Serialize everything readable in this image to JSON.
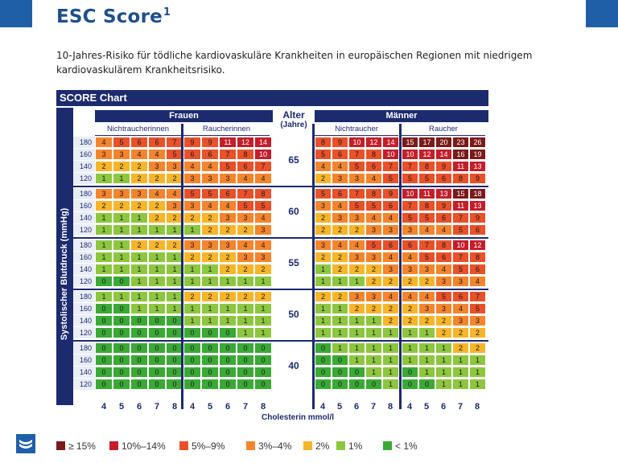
{
  "page": {
    "title": "ESC Score",
    "title_footnote": "1",
    "subtitle": "10-Jahres-Risiko für tödliche kardiovaskuläre Krankheiten in europäischen Regionen mit niedrigem kardiovaskulärem Krankheitsrisiko.",
    "brand_color": "#1f5fa8"
  },
  "chart": {
    "header": "SCORE Chart",
    "ylabel": "Systolischer Blutdruck (mmHg)",
    "xlabel": "Cholesterin mmol/l",
    "women_label": "Frauen",
    "men_label": "Männer",
    "age_label_line1": "Alter",
    "age_label_line2": "(Jahre)",
    "women_groups": [
      "Nichtraucherinnen",
      "Raucherinnen"
    ],
    "men_groups": [
      "Nichtraucher",
      "Raucher"
    ],
    "cholesterol_ticks": [
      "4",
      "5",
      "6",
      "7",
      "8",
      "4",
      "5",
      "6",
      "7",
      "8",
      "4",
      "5",
      "6",
      "7",
      "8",
      "4",
      "5",
      "6",
      "7",
      "8"
    ],
    "bp_levels": [
      "180",
      "160",
      "140",
      "120"
    ],
    "ages": [
      "65",
      "60",
      "55",
      "50",
      "40"
    ]
  },
  "chart_data": {
    "type": "table",
    "title": "SCORE Chart",
    "row_groups": [
      "65",
      "60",
      "55",
      "50",
      "40"
    ],
    "rows": [
      "180",
      "160",
      "140",
      "120"
    ],
    "columns": [
      "Frauen Nichtraucherinnen 4",
      "5",
      "6",
      "7",
      "8",
      "Frauen Raucherinnen 4",
      "5",
      "6",
      "7",
      "8",
      "Männer Nichtraucher 4",
      "5",
      "6",
      "7",
      "8",
      "Männer Raucher 4",
      "5",
      "6",
      "7",
      "8"
    ],
    "women": {
      "65": [
        [
          4,
          5,
          6,
          6,
          7,
          9,
          9,
          11,
          12,
          14
        ],
        [
          3,
          3,
          4,
          4,
          5,
          6,
          6,
          7,
          8,
          10
        ],
        [
          2,
          2,
          2,
          3,
          3,
          4,
          4,
          5,
          6,
          7
        ],
        [
          1,
          1,
          2,
          2,
          2,
          3,
          3,
          3,
          4,
          4
        ]
      ],
      "60": [
        [
          3,
          3,
          3,
          4,
          4,
          5,
          5,
          6,
          7,
          8
        ],
        [
          2,
          2,
          2,
          2,
          3,
          3,
          4,
          4,
          5,
          5
        ],
        [
          1,
          1,
          1,
          2,
          2,
          2,
          2,
          3,
          3,
          4
        ],
        [
          1,
          1,
          1,
          1,
          1,
          1,
          2,
          2,
          2,
          3
        ]
      ],
      "55": [
        [
          1,
          1,
          2,
          2,
          2,
          3,
          3,
          3,
          4,
          4
        ],
        [
          1,
          1,
          1,
          1,
          1,
          2,
          2,
          2,
          3,
          3
        ],
        [
          1,
          1,
          1,
          1,
          1,
          1,
          1,
          2,
          2,
          2
        ],
        [
          0,
          0,
          1,
          1,
          1,
          1,
          1,
          1,
          1,
          1
        ]
      ],
      "50": [
        [
          1,
          1,
          1,
          1,
          1,
          2,
          2,
          2,
          2,
          2
        ],
        [
          0,
          0,
          1,
          1,
          1,
          1,
          1,
          1,
          1,
          1
        ],
        [
          0,
          0,
          0,
          0,
          0,
          1,
          1,
          1,
          1,
          1
        ],
        [
          0,
          0,
          0,
          0,
          0,
          0,
          0,
          0,
          1,
          1
        ]
      ],
      "40": [
        [
          0,
          0,
          0,
          0,
          0,
          0,
          0,
          0,
          0,
          0
        ],
        [
          0,
          0,
          0,
          0,
          0,
          0,
          0,
          0,
          0,
          0
        ],
        [
          0,
          0,
          0,
          0,
          0,
          0,
          0,
          0,
          0,
          0
        ],
        [
          0,
          0,
          0,
          0,
          0,
          0,
          0,
          0,
          0,
          0
        ]
      ]
    },
    "men": {
      "65": [
        [
          8,
          9,
          10,
          12,
          14,
          15,
          17,
          20,
          23,
          26
        ],
        [
          5,
          6,
          7,
          8,
          10,
          10,
          12,
          14,
          16,
          19
        ],
        [
          4,
          4,
          5,
          6,
          7,
          7,
          8,
          9,
          11,
          13
        ],
        [
          2,
          3,
          3,
          4,
          5,
          5,
          5,
          6,
          8,
          9
        ]
      ],
      "60": [
        [
          5,
          6,
          7,
          8,
          9,
          10,
          11,
          13,
          15,
          18
        ],
        [
          3,
          4,
          5,
          5,
          6,
          7,
          8,
          9,
          11,
          13
        ],
        [
          2,
          3,
          3,
          4,
          4,
          5,
          5,
          6,
          7,
          9
        ],
        [
          2,
          2,
          2,
          3,
          3,
          3,
          4,
          4,
          5,
          6
        ]
      ],
      "55": [
        [
          3,
          4,
          4,
          5,
          6,
          6,
          7,
          8,
          10,
          12
        ],
        [
          2,
          2,
          3,
          3,
          4,
          4,
          5,
          6,
          7,
          8
        ],
        [
          1,
          2,
          2,
          2,
          3,
          3,
          3,
          4,
          5,
          6
        ],
        [
          1,
          1,
          1,
          2,
          2,
          2,
          2,
          3,
          3,
          4
        ]
      ],
      "50": [
        [
          2,
          2,
          3,
          3,
          4,
          4,
          4,
          5,
          6,
          7
        ],
        [
          1,
          1,
          2,
          2,
          2,
          2,
          3,
          3,
          4,
          5
        ],
        [
          1,
          1,
          1,
          1,
          2,
          2,
          2,
          2,
          3,
          3
        ],
        [
          1,
          1,
          1,
          1,
          1,
          1,
          1,
          2,
          2,
          2
        ]
      ],
      "40": [
        [
          0,
          1,
          1,
          1,
          1,
          1,
          1,
          1,
          2,
          2
        ],
        [
          0,
          0,
          1,
          1,
          1,
          1,
          1,
          1,
          1,
          1
        ],
        [
          0,
          0,
          0,
          1,
          1,
          0,
          1,
          1,
          1,
          1
        ],
        [
          0,
          0,
          0,
          0,
          1,
          0,
          0,
          1,
          1,
          1
        ]
      ]
    }
  },
  "legend": [
    {
      "label": "≥ 15%",
      "color": "#7b1a1a"
    },
    {
      "label": "10%–14%",
      "color": "#c41e2a"
    },
    {
      "label": "5%–9%",
      "color": "#e8512a"
    },
    {
      "label": "3%–4%",
      "color": "#f4852e"
    },
    {
      "label": "2%",
      "color": "#f7b52a"
    },
    {
      "label": "1%",
      "color": "#8dc63f"
    },
    {
      "label": "< 1%",
      "color": "#3aa935"
    }
  ],
  "colors": {
    "navy": "#1c2a6e",
    "r15": "#7b1a1a",
    "r10": "#c41e2a",
    "r5": "#e8512a",
    "r3": "#f4852e",
    "r2": "#f7b52a",
    "r1": "#8dc63f",
    "r0": "#3aa935"
  }
}
